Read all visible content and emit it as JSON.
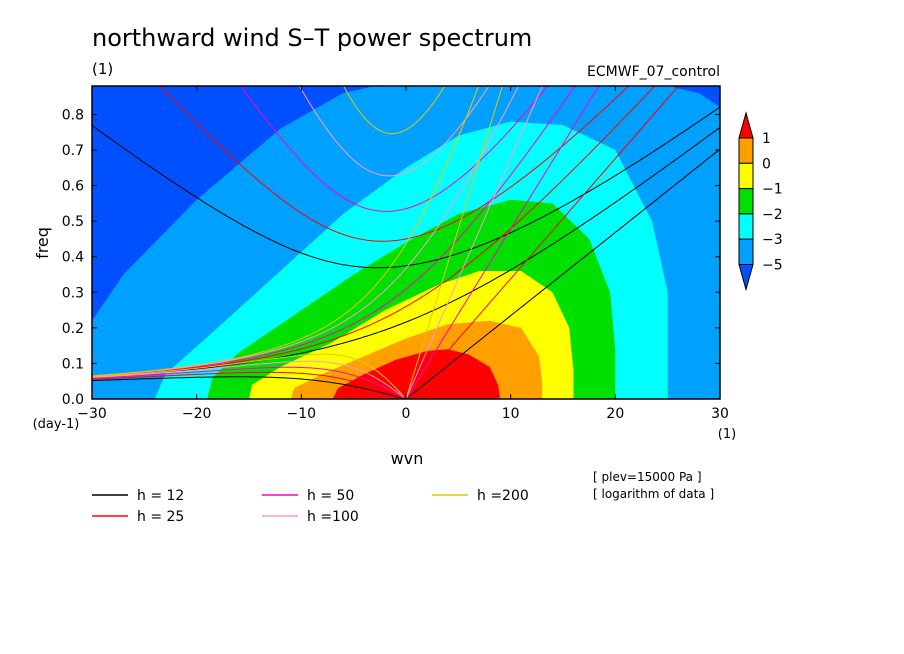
{
  "chart_data": {
    "type": "heatmap",
    "title": "northward wind S–T power spectrum",
    "subtitle": "(1)",
    "run_label": "ECMWF_07_control",
    "xlabel": "wvn",
    "ylabel": "freq",
    "x_unit": "(1)",
    "y_unit": "(day-1)",
    "xlim": [
      -30,
      30
    ],
    "ylim": [
      0,
      0.88
    ],
    "xticks": [
      -30,
      -20,
      -10,
      0,
      10,
      20,
      30
    ],
    "yticks": [
      0.0,
      0.1,
      0.2,
      0.3,
      0.4,
      0.5,
      0.6,
      0.7,
      0.8
    ],
    "ytick_labels": [
      "0.0",
      "0.1",
      "0.2",
      "0.3",
      "0.4",
      "0.5",
      "0.6",
      "0.7",
      "0.8"
    ],
    "colorbar": {
      "levels": [
        1,
        0,
        -1,
        -2,
        -3,
        -5
      ],
      "colors": [
        "#0050ff",
        "#00a0ff",
        "#00ffff",
        "#00e000",
        "#ffff00",
        "#ffa000",
        "#ff0000"
      ]
    },
    "filled_regions": [
      {
        "max_level": -5,
        "color": "#0050ff"
      },
      {
        "level": -5,
        "color": "#00a0ff",
        "x_extent": [
          -30,
          30
        ],
        "y_top_at_x0": 0.88
      },
      {
        "level": -3,
        "color": "#00ffff",
        "x_extent": [
          -24,
          25
        ],
        "y_top_at_x0": 0.78
      },
      {
        "level": -2,
        "color": "#00e000",
        "x_extent": [
          -19,
          20
        ],
        "y_top_at_x0": 0.55
      },
      {
        "level": -1,
        "color": "#ffff00",
        "x_extent": [
          -15,
          16
        ],
        "y_top_at_x0": 0.37
      },
      {
        "level": 0,
        "color": "#ffa000",
        "x_extent": [
          -11,
          13
        ],
        "y_top_at_x0": 0.22
      },
      {
        "level": 1,
        "color": "#ff0000",
        "x_extent": [
          -7,
          9
        ],
        "y_top_at_x0": 0.14
      }
    ],
    "dispersion_curves": [
      {
        "h": 12,
        "label": "h = 12",
        "color": "#000000"
      },
      {
        "h": 25,
        "label": "h = 25",
        "color": "#ff0000"
      },
      {
        "h": 50,
        "label": "h = 50",
        "color": "#ff00c0"
      },
      {
        "h": 100,
        "label": "h =100",
        "color": "#ff99cc"
      },
      {
        "h": 200,
        "label": "h =200",
        "color": "#e6c800"
      }
    ],
    "annotations": [
      "[ plev=15000 Pa ]",
      "[ logarithm of data ]"
    ],
    "grid": false,
    "legend_position": "bottom"
  }
}
